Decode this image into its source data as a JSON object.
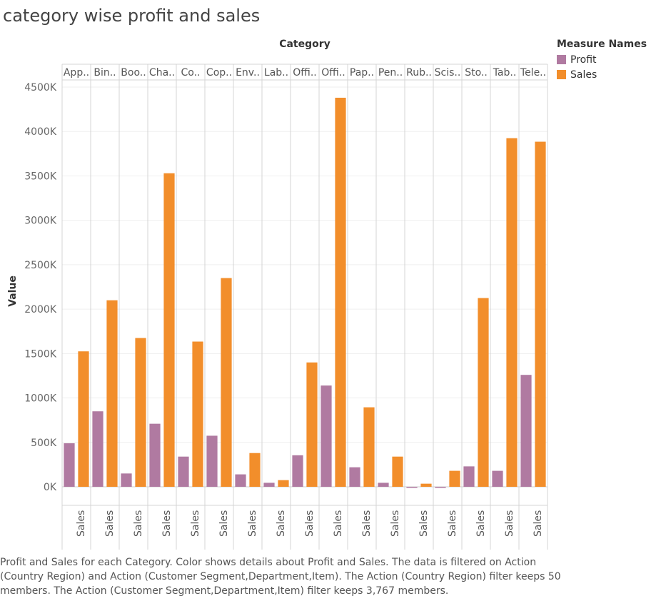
{
  "title": "category wise profit and sales",
  "caption": "Profit and Sales for each Category.  Color shows details about Profit and Sales. The data is filtered on Action (Country Region) and Action (Customer Segment,Department,Item). The Action (Country Region) filter keeps 50 members. The Action (Customer Segment,Department,Item) filter keeps 3,767 members.",
  "legend": {
    "title": "Measure Names",
    "items": [
      {
        "name": "Profit",
        "color": "#b07aa1"
      },
      {
        "name": "Sales",
        "color": "#f28e2b"
      }
    ]
  },
  "chart_data": {
    "type": "bar",
    "column_header_title": "Category",
    "column_labels": [
      "App..",
      "Bin..",
      "Boo..",
      "Cha..",
      "Co..",
      "Cop..",
      "Env..",
      "Lab..",
      "Offi..",
      "Offi..",
      "Pap..",
      "Pen..",
      "Rub..",
      "Scis..",
      "Sto..",
      "Tab..",
      "Tele.."
    ],
    "ylabel": "Value",
    "ylim": [
      0,
      4500000
    ],
    "yticks": [
      {
        "value": 0,
        "label": "0K"
      },
      {
        "value": 500000,
        "label": "500K"
      },
      {
        "value": 1000000,
        "label": "1000K"
      },
      {
        "value": 1500000,
        "label": "1500K"
      },
      {
        "value": 2000000,
        "label": "2000K"
      },
      {
        "value": 2500000,
        "label": "2500K"
      },
      {
        "value": 3000000,
        "label": "3000K"
      },
      {
        "value": 3500000,
        "label": "3500K"
      },
      {
        "value": 4000000,
        "label": "4000K"
      },
      {
        "value": 4500000,
        "label": "4500K"
      }
    ],
    "bottom_label": "Sales",
    "grid": true,
    "legend_position": "top-right",
    "series": [
      {
        "name": "Profit",
        "color": "#b07aa1",
        "values": [
          490000,
          850000,
          150000,
          710000,
          340000,
          575000,
          140000,
          45000,
          355000,
          1140000,
          220000,
          45000,
          -5000,
          -5000,
          230000,
          180000,
          1260000
        ]
      },
      {
        "name": "Sales",
        "color": "#f28e2b",
        "values": [
          1525000,
          2100000,
          1675000,
          3530000,
          1635000,
          2350000,
          380000,
          75000,
          1400000,
          4380000,
          895000,
          340000,
          35000,
          180000,
          2125000,
          3925000,
          3885000
        ]
      }
    ]
  }
}
